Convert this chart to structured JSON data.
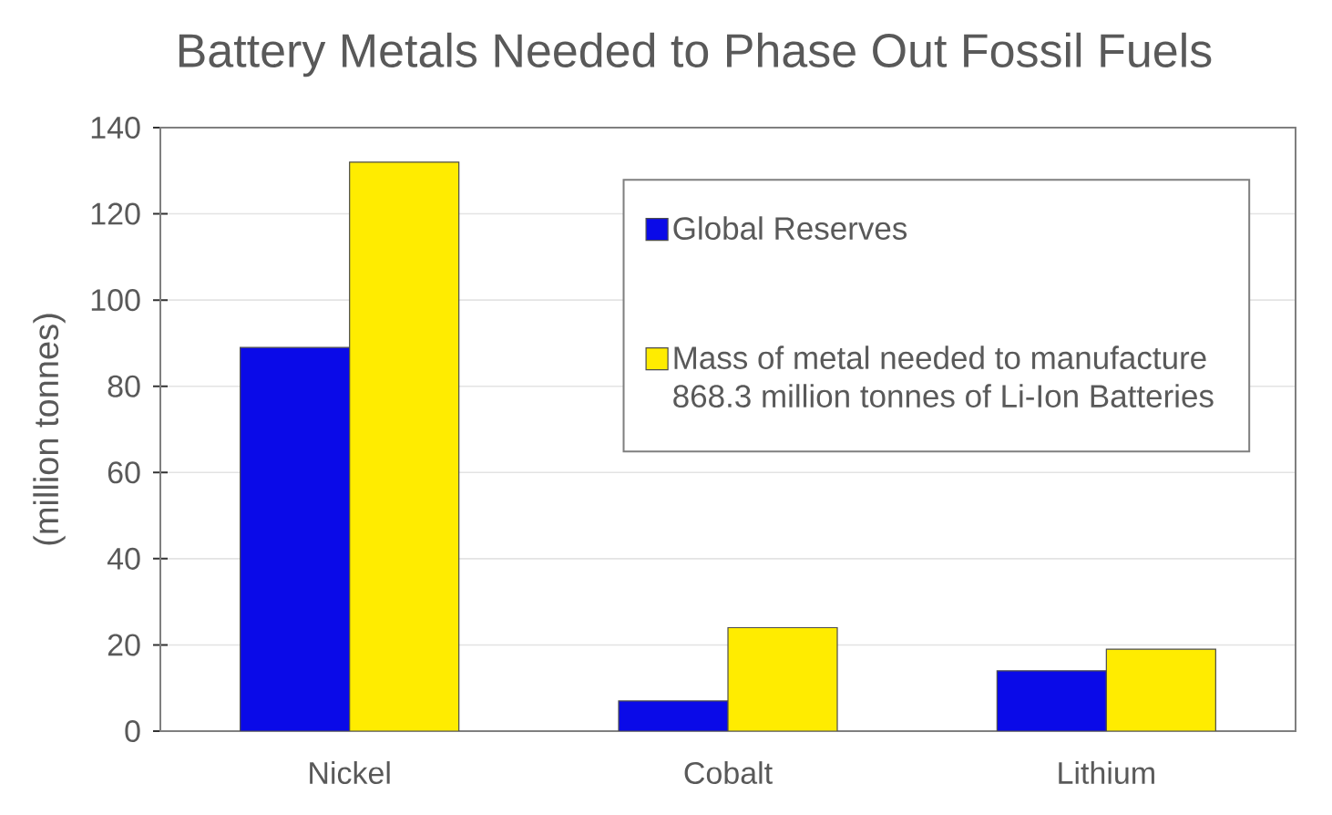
{
  "chart_data": {
    "type": "bar",
    "title": "Battery Metals Needed to Phase Out Fossil Fuels",
    "ylabel": "(million tonnes)",
    "categories": [
      "Nickel",
      "Cobalt",
      "Lithium"
    ],
    "series": [
      {
        "name": "Global Reserves",
        "color": "#0a0ae8",
        "values": [
          89,
          7,
          14
        ]
      },
      {
        "name": "Mass of metal needed to manufacture 868.3 million tonnes of Li-Ion Batteries",
        "color": "#ffec00",
        "values": [
          132,
          24,
          19
        ]
      }
    ],
    "ylim": [
      0,
      140
    ],
    "yticks": [
      0,
      20,
      40,
      60,
      80,
      100,
      120,
      140
    ],
    "grid": "y",
    "legend": "top right"
  }
}
